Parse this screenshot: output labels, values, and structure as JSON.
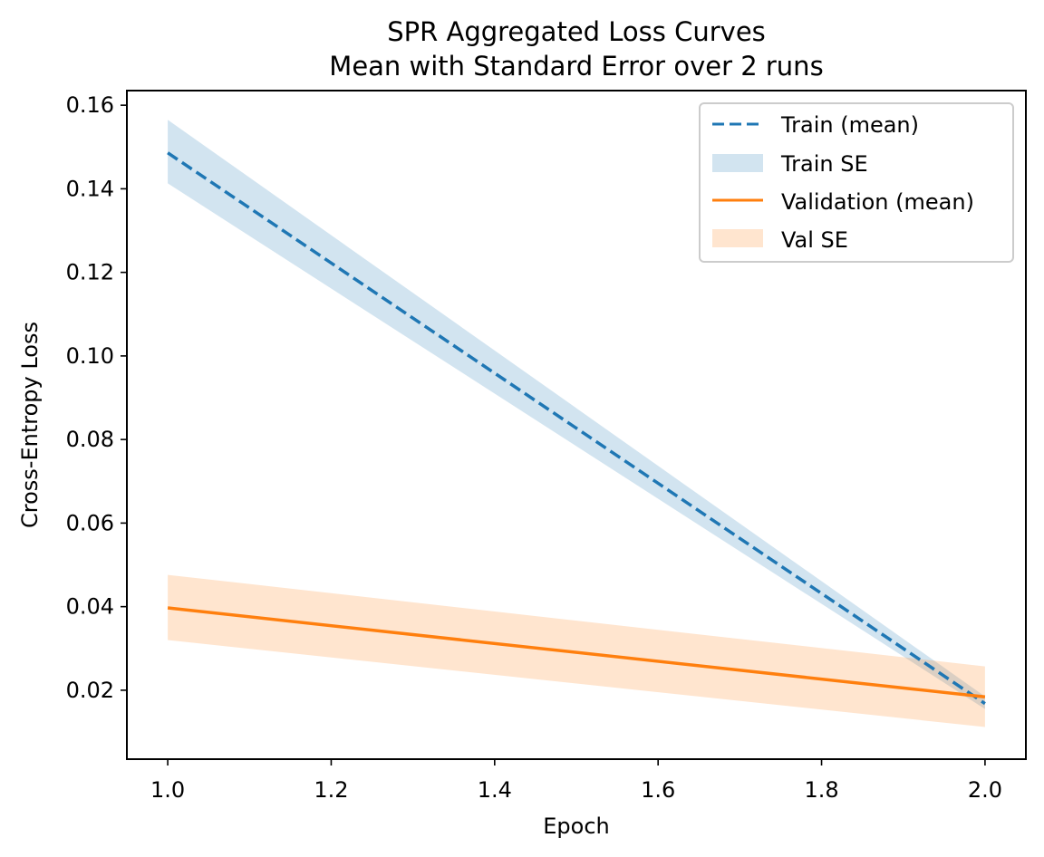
{
  "chart_data": {
    "type": "line",
    "title": "SPR Aggregated Loss Curves",
    "subtitle": "Mean with Standard Error over 2 runs",
    "xlabel": "Epoch",
    "ylabel": "Cross-Entropy Loss",
    "xlim": [
      0.95,
      2.05
    ],
    "ylim": [
      0.0035,
      0.1635
    ],
    "xticks": [
      1.0,
      1.2,
      1.4,
      1.6,
      1.8,
      2.0
    ],
    "xtick_labels": [
      "1.0",
      "1.2",
      "1.4",
      "1.6",
      "1.8",
      "2.0"
    ],
    "yticks": [
      0.02,
      0.04,
      0.06,
      0.08,
      0.1,
      0.12,
      0.14,
      0.16
    ],
    "ytick_labels": [
      "0.02",
      "0.04",
      "0.06",
      "0.08",
      "0.10",
      "0.12",
      "0.14",
      "0.16"
    ],
    "grid": false,
    "legend_position": "top-right",
    "x": [
      1,
      2
    ],
    "series": [
      {
        "name": "Train (mean)",
        "band_name": "Train SE",
        "color": "#1f77b4",
        "band_color": "#1f77b4",
        "linestyle": "dashed",
        "values": [
          0.1486,
          0.0168
        ],
        "se_lower": [
          0.1413,
          0.0155
        ],
        "se_upper": [
          0.1565,
          0.0185
        ]
      },
      {
        "name": "Validation (mean)",
        "band_name": "Val SE",
        "color": "#ff7f0e",
        "band_color": "#ff7f0e",
        "linestyle": "solid",
        "values": [
          0.0397,
          0.0184
        ],
        "se_lower": [
          0.032,
          0.0112
        ],
        "se_upper": [
          0.0476,
          0.0257
        ]
      }
    ]
  }
}
